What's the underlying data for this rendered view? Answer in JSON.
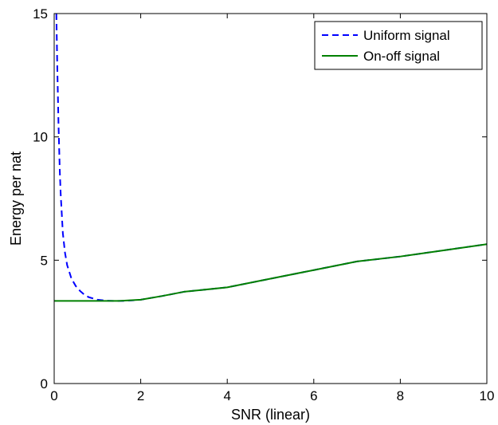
{
  "chart_data": {
    "type": "line",
    "title": "",
    "xlabel": "SNR (linear)",
    "ylabel": "Energy per nat",
    "xlim": [
      0,
      10
    ],
    "ylim": [
      0,
      15
    ],
    "xticks": [
      0,
      2,
      4,
      6,
      8,
      10
    ],
    "yticks": [
      0,
      5,
      10,
      15
    ],
    "xtick_labels": [
      "0",
      "2",
      "4",
      "6",
      "8",
      "10"
    ],
    "ytick_labels": [
      "0",
      "5",
      "10",
      "15"
    ],
    "grid": false,
    "legend_position": "top-right",
    "series": [
      {
        "name": "Uniform signal",
        "color": "#0000ff",
        "style": "dashed",
        "x": [
          0.05,
          0.07,
          0.1,
          0.13,
          0.15,
          0.2,
          0.25,
          0.3,
          0.4,
          0.5,
          0.6,
          0.7,
          0.8,
          1.0,
          1.2,
          1.4,
          1.6,
          1.8,
          2.0,
          2.5,
          3.0,
          4.0,
          5.0,
          6.0,
          7.0,
          8.0,
          9.0,
          10.0
        ],
        "y": [
          15.0,
          13.0,
          10.5,
          8.6,
          7.7,
          6.1,
          5.3,
          4.8,
          4.25,
          3.95,
          3.75,
          3.6,
          3.5,
          3.4,
          3.36,
          3.35,
          3.35,
          3.37,
          3.4,
          3.55,
          3.72,
          3.9,
          4.25,
          4.6,
          4.95,
          5.15,
          5.4,
          5.65
        ]
      },
      {
        "name": "On-off signal",
        "color": "#008000",
        "style": "solid",
        "x": [
          0.0,
          0.5,
          1.0,
          1.5,
          2.0,
          2.5,
          3.0,
          4.0,
          5.0,
          6.0,
          7.0,
          8.0,
          9.0,
          10.0
        ],
        "y": [
          3.35,
          3.35,
          3.35,
          3.35,
          3.4,
          3.55,
          3.72,
          3.9,
          4.25,
          4.6,
          4.95,
          5.15,
          5.4,
          5.65
        ]
      }
    ]
  }
}
